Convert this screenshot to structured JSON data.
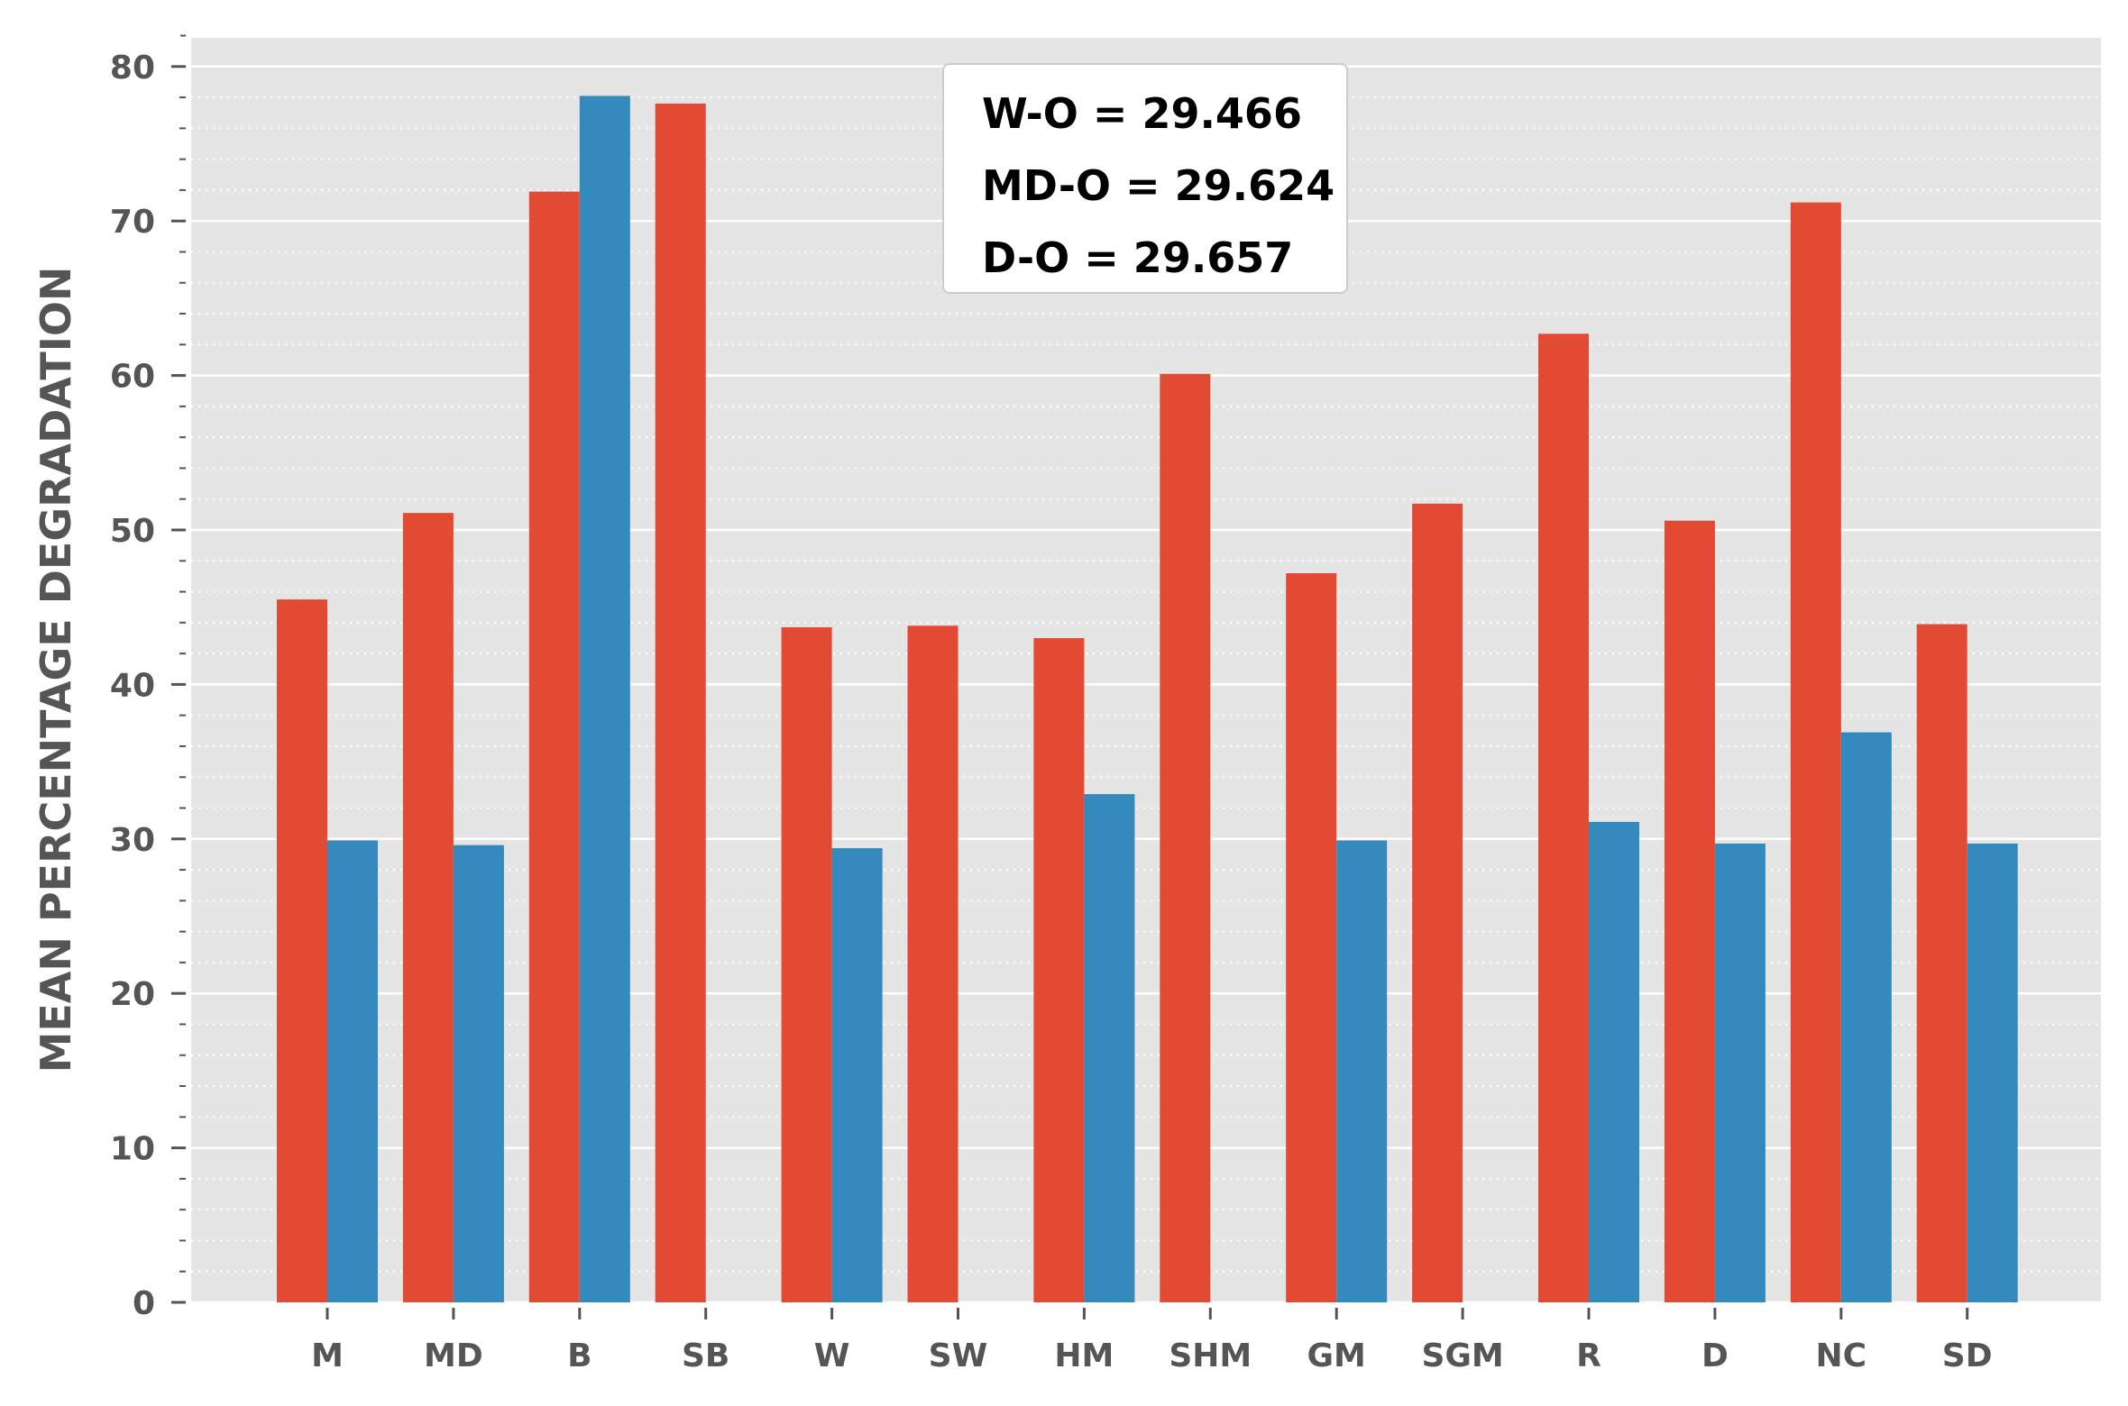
{
  "chart_data": {
    "type": "bar",
    "ylabel": "MEAN PERCENTAGE DEGRADATION",
    "xlabel": "",
    "ylim": [
      0,
      80
    ],
    "yticks": [
      0,
      10,
      20,
      30,
      40,
      50,
      60,
      70,
      80
    ],
    "grid": true,
    "categories": [
      "M",
      "MD",
      "B",
      "SB",
      "W",
      "SW",
      "HM",
      "SHM",
      "GM",
      "SGM",
      "R",
      "D",
      "NC",
      "SD"
    ],
    "series": [
      {
        "color": "#E24A33",
        "values": [
          45.5,
          51.1,
          71.9,
          77.6,
          43.7,
          43.8,
          43.0,
          60.1,
          47.2,
          51.7,
          62.7,
          50.6,
          71.2,
          43.9
        ]
      },
      {
        "color": "#348ABD",
        "values": [
          29.9,
          29.6,
          78.1,
          null,
          29.4,
          null,
          32.9,
          null,
          29.9,
          null,
          31.1,
          29.7,
          36.9,
          29.7
        ]
      }
    ],
    "annotation": {
      "lines": [
        "W-O = 29.466",
        "MD-O = 29.624",
        "D-O = 29.657"
      ],
      "placement": "top-center"
    },
    "colors": {
      "plot_background": "#E5E5E5",
      "grid": "#FFFFFF",
      "text": "#555555"
    }
  }
}
